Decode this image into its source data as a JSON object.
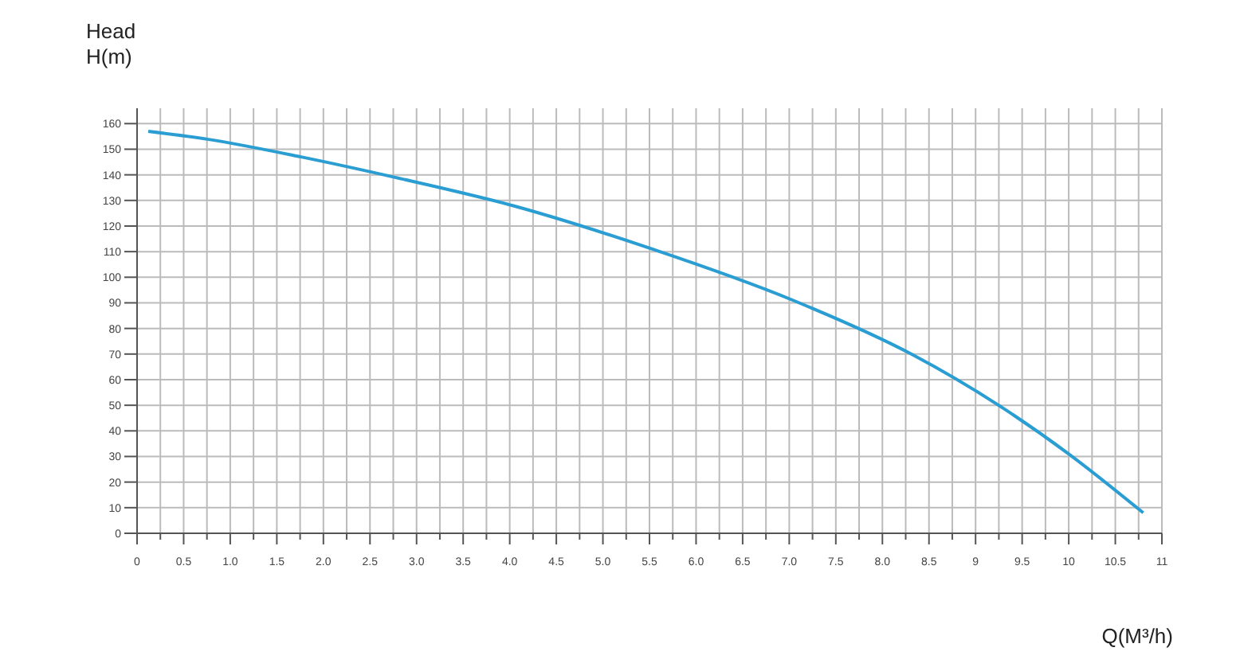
{
  "chart_data": {
    "type": "line",
    "xlabel": "Q(M³/h)",
    "ylabel": "Head\nH(m)",
    "series": [
      {
        "color": "#2a9ed2",
        "x": [
          0.12,
          0.74,
          1.76,
          2.77,
          4.03,
          5.53,
          7.04,
          8.31,
          9.29,
          10.0,
          10.8
        ],
        "values": [
          157,
          154,
          147,
          139,
          128,
          111,
          91,
          70,
          49,
          31,
          8
        ]
      }
    ],
    "xlim": [
      0,
      11
    ],
    "ylim": [
      0,
      166
    ],
    "xticks": [
      0,
      {
        "value": 0.25,
        "label": null
      },
      0.5,
      {
        "value": 0.75,
        "label": null
      },
      {
        "value": 1,
        "label": "1.0"
      },
      {
        "value": 1.25,
        "label": null
      },
      1.5,
      {
        "value": 1.75,
        "label": null
      },
      {
        "value": 2,
        "label": "2.0"
      },
      {
        "value": 2.25,
        "label": null
      },
      2.5,
      {
        "value": 2.75,
        "label": null
      },
      {
        "value": 3,
        "label": "3.0"
      },
      {
        "value": 3.25,
        "label": null
      },
      3.5,
      {
        "value": 3.75,
        "label": null
      },
      {
        "value": 4,
        "label": "4.0"
      },
      {
        "value": 4.25,
        "label": null
      },
      4.5,
      {
        "value": 4.75,
        "label": null
      },
      {
        "value": 5,
        "label": "5.0"
      },
      {
        "value": 5.25,
        "label": null
      },
      5.5,
      {
        "value": 5.75,
        "label": null
      },
      {
        "value": 6,
        "label": "6.0"
      },
      {
        "value": 6.25,
        "label": null
      },
      6.5,
      {
        "value": 6.75,
        "label": null
      },
      {
        "value": 7,
        "label": "7.0"
      },
      {
        "value": 7.25,
        "label": null
      },
      7.5,
      {
        "value": 7.75,
        "label": null
      },
      {
        "value": 8,
        "label": "8.0"
      },
      {
        "value": 8.25,
        "label": null
      },
      8.5,
      {
        "value": 8.75,
        "label": null
      },
      9,
      {
        "value": 9.25,
        "label": null
      },
      9.5,
      {
        "value": 9.75,
        "label": null
      },
      10,
      {
        "value": 10.25,
        "label": null
      },
      10.5,
      {
        "value": 10.75,
        "label": null
      },
      11
    ],
    "yticks": [
      0,
      10,
      20,
      30,
      40,
      50,
      60,
      70,
      80,
      90,
      100,
      110,
      120,
      130,
      140,
      150,
      160
    ],
    "grid": true,
    "marker": "none",
    "line_style": "solid"
  }
}
